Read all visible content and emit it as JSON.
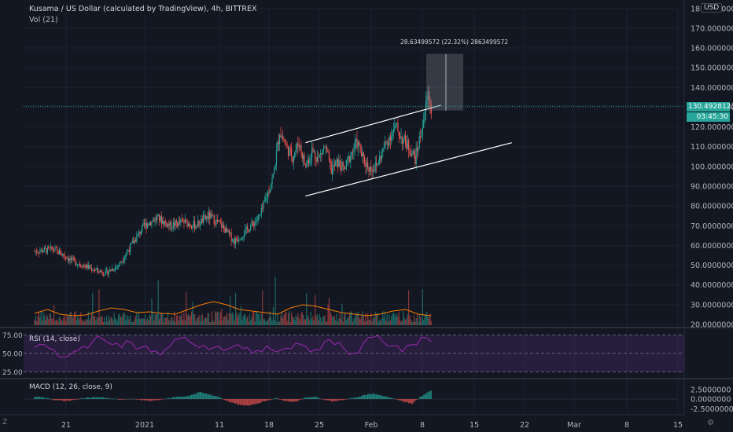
{
  "header": {
    "title": "Kusama / US Dollar (calculated by TradingView), 4h, BITTREX",
    "volume_label": "Vol (21)"
  },
  "currency": "USD",
  "current_price": "130.49281239",
  "countdown": "03:45:30",
  "measurement": {
    "label": "28.63499572 (22.32%) 2863499572",
    "start_price": 128.3,
    "end_price": 157.0
  },
  "rsi": {
    "label": "RSI (14, close)",
    "levels": [
      "75.00",
      "50.00",
      "25.00"
    ]
  },
  "macd": {
    "label": "MACD (12, 26, close, 9)",
    "levels": [
      "2.5000000",
      "0.0000000",
      "-2.5000000"
    ]
  },
  "controls": {
    "zoom": "Z",
    "timezone": "⚙"
  },
  "colors": {
    "up": "#26a69a",
    "down": "#ef5350",
    "rsi_line": "#9c27b0",
    "ma_line": "#f57c00",
    "price_line": "#26a69a"
  },
  "chart_data": {
    "type": "candlestick",
    "title": "Kusama / US Dollar (calculated by TradingView), 4h, BITTREX",
    "y_axis_ticks": [
      "180.00000000",
      "170.00000000",
      "160.00000000",
      "150.00000000",
      "140.00000000",
      "130.00000000",
      "120.00000000",
      "110.00000000",
      "100.00000000",
      "90.00000000",
      "80.00000000",
      "70.00000000",
      "60.00000000",
      "50.00000000",
      "40.00000000",
      "30.00000000",
      "20.00000000"
    ],
    "x_axis_ticks": [
      "21",
      "2021",
      "11",
      "18",
      "25",
      "Feb",
      "8",
      "15",
      "22",
      "Mar",
      "8",
      "15"
    ],
    "ylim": [
      20,
      182
    ],
    "close_path": [
      {
        "day": 0,
        "price": 57
      },
      {
        "day": 3,
        "price": 58
      },
      {
        "day": 6,
        "price": 52
      },
      {
        "day": 9,
        "price": 48
      },
      {
        "day": 11,
        "price": 46
      },
      {
        "day": 13,
        "price": 50
      },
      {
        "day": 15,
        "price": 60
      },
      {
        "day": 17,
        "price": 70
      },
      {
        "day": 19,
        "price": 74
      },
      {
        "day": 21,
        "price": 70
      },
      {
        "day": 23,
        "price": 72
      },
      {
        "day": 25,
        "price": 70
      },
      {
        "day": 27,
        "price": 75
      },
      {
        "day": 29,
        "price": 70
      },
      {
        "day": 31,
        "price": 62
      },
      {
        "day": 33,
        "price": 68
      },
      {
        "day": 35,
        "price": 75
      },
      {
        "day": 37,
        "price": 95
      },
      {
        "day": 38,
        "price": 118
      },
      {
        "day": 39,
        "price": 110
      },
      {
        "day": 40,
        "price": 105
      },
      {
        "day": 41,
        "price": 112
      },
      {
        "day": 42,
        "price": 100
      },
      {
        "day": 43,
        "price": 108
      },
      {
        "day": 44,
        "price": 104
      },
      {
        "day": 45,
        "price": 110
      },
      {
        "day": 46,
        "price": 98
      },
      {
        "day": 47,
        "price": 102
      },
      {
        "day": 48,
        "price": 98
      },
      {
        "day": 49,
        "price": 106
      },
      {
        "day": 50,
        "price": 112
      },
      {
        "day": 51,
        "price": 103
      },
      {
        "day": 52,
        "price": 99
      },
      {
        "day": 53,
        "price": 100
      },
      {
        "day": 54,
        "price": 108
      },
      {
        "day": 55,
        "price": 115
      },
      {
        "day": 56,
        "price": 120
      },
      {
        "day": 57,
        "price": 114
      },
      {
        "day": 58,
        "price": 110
      },
      {
        "day": 59,
        "price": 104
      },
      {
        "day": 60,
        "price": 118
      },
      {
        "day": 61,
        "price": 137
      },
      {
        "day": 61.5,
        "price": 130
      }
    ],
    "volume_ma": [
      15,
      20,
      14,
      12,
      13,
      18,
      22,
      20,
      16,
      17,
      15,
      14,
      20,
      26,
      30,
      26,
      20,
      18,
      16,
      14,
      22,
      26,
      24,
      20,
      16,
      14,
      12,
      14,
      18,
      20,
      14,
      12
    ],
    "rsi": [
      58,
      62,
      55,
      45,
      52,
      60,
      66,
      70,
      62,
      58,
      65,
      58,
      52,
      48,
      60,
      70,
      66,
      58,
      55,
      60,
      56,
      62,
      58,
      54,
      60,
      52,
      57,
      64,
      60,
      55,
      66,
      62,
      56,
      50,
      64,
      72,
      66,
      60,
      52,
      62,
      72,
      66
    ],
    "macd_hist": [
      0.6,
      0.4,
      -0.2,
      -0.5,
      -0.3,
      0.2,
      0.5,
      0.4,
      0.1,
      -0.2,
      0.1,
      -0.3,
      -0.5,
      -0.2,
      0.3,
      0.6,
      0.8,
      1.8,
      1.2,
      0.6,
      -0.6,
      -1.4,
      -1.8,
      -1.2,
      -0.4,
      0.2,
      -0.5,
      -0.8,
      0.4,
      0.6,
      -0.3,
      -0.6,
      -0.2,
      0.3,
      1.0,
      1.4,
      0.8,
      0.2,
      -0.6,
      -1.2,
      0.8,
      2.2
    ],
    "channel": {
      "upper": [
        {
          "day": 42,
          "price": 112
        },
        {
          "day": 63,
          "price": 131
        }
      ],
      "lower": [
        {
          "day": 42,
          "price": 85
        },
        {
          "day": 74,
          "price": 112
        }
      ]
    }
  }
}
